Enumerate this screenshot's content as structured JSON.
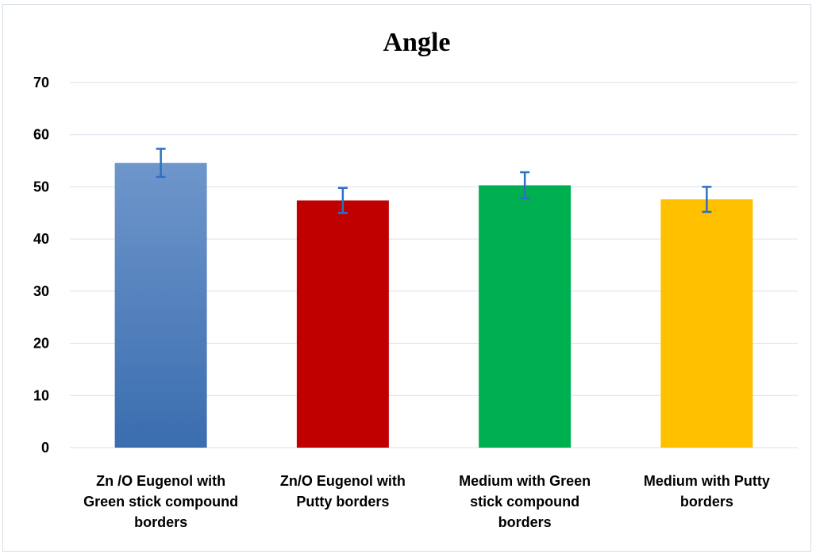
{
  "chart_data": {
    "type": "bar",
    "title": "Angle",
    "xlabel": "",
    "ylabel": "",
    "ylim": [
      0,
      70
    ],
    "yticks": [
      0,
      10,
      20,
      30,
      40,
      50,
      60,
      70
    ],
    "grid": true,
    "legend": "none",
    "categories": [
      [
        "Zn /O Eugenol with",
        "Green stick compound",
        "borders"
      ],
      [
        "Zn/O Eugenol with",
        "Putty borders"
      ],
      [
        "Medium with Green",
        "stick compound",
        "borders"
      ],
      [
        "Medium with Putty",
        "borders"
      ]
    ],
    "values": [
      54.6,
      47.4,
      50.3,
      47.6
    ],
    "error": [
      2.7,
      2.4,
      2.5,
      2.4
    ],
    "colors": [
      "#4a7fc0",
      "#c00000",
      "#00b050",
      "#ffc000"
    ],
    "error_color": "#2e6fc4"
  }
}
